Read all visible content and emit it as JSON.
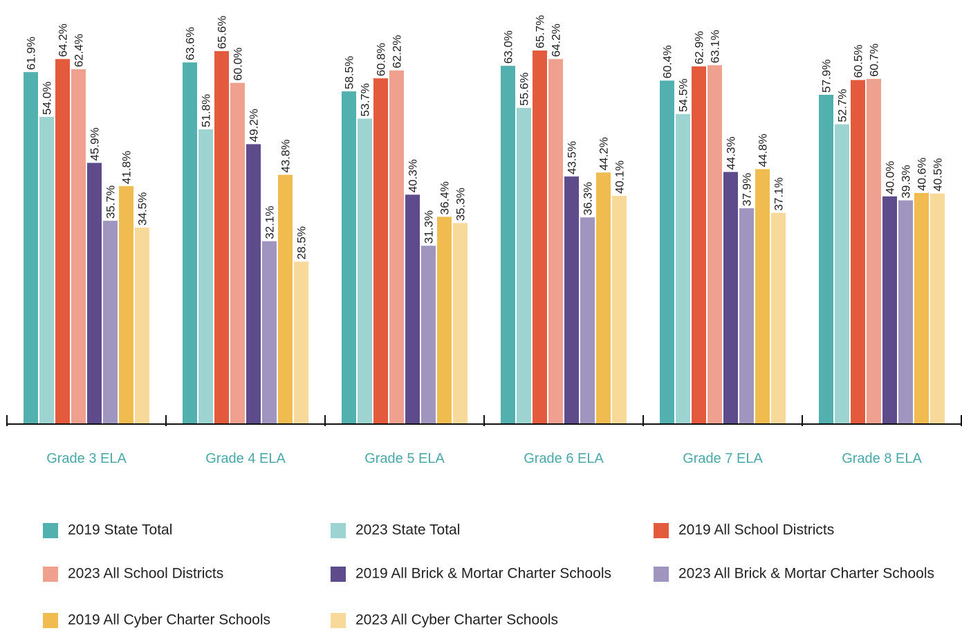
{
  "chart_data": {
    "type": "bar",
    "categories": [
      "Grade 3 ELA",
      "Grade 4 ELA",
      "Grade 5 ELA",
      "Grade 6 ELA",
      "Grade 7 ELA",
      "Grade 8 ELA"
    ],
    "ylim": [
      0,
      74.6
    ],
    "series": [
      {
        "name": "2019 State Total",
        "color": "#52b0ae",
        "values": [
          61.9,
          63.6,
          58.5,
          63.0,
          60.4,
          57.9
        ],
        "value_labels": [
          "61.9%",
          "63.6%",
          "58.5%",
          "63.0%",
          "60.4%",
          "57.9%"
        ]
      },
      {
        "name": "2023 State Total",
        "color": "#9dd3d1",
        "values": [
          54.0,
          51.8,
          53.7,
          55.6,
          54.5,
          52.7
        ],
        "value_labels": [
          "54.0%",
          "51.8%",
          "53.7%",
          "55.6%",
          "54.5%",
          "52.7%"
        ]
      },
      {
        "name": "2019 All School Districts",
        "color": "#e35a3c",
        "values": [
          64.2,
          65.6,
          60.8,
          65.7,
          62.9,
          60.5
        ],
        "value_labels": [
          "64.2%",
          "65.6%",
          "60.8%",
          "65.7%",
          "62.9%",
          "60.5%"
        ]
      },
      {
        "name": "2023 All School Districts",
        "color": "#f0a08e",
        "values": [
          62.4,
          60.0,
          62.2,
          64.2,
          63.1,
          60.7
        ],
        "value_labels": [
          "62.4%",
          "60.0%",
          "62.2%",
          "64.2%",
          "63.1%",
          "60.7%"
        ]
      },
      {
        "name": "2019 All Brick & Mortar Charter Schools",
        "color": "#5e4b8b",
        "values": [
          45.9,
          49.2,
          40.3,
          43.5,
          44.3,
          40.0
        ],
        "value_labels": [
          "45.9%",
          "49.2%",
          "40.3%",
          "43.5%",
          "44.3%",
          "40.0%"
        ]
      },
      {
        "name": "2023 All Brick & Mortar Charter Schools",
        "color": "#9f95bf",
        "values": [
          35.7,
          32.1,
          31.3,
          36.3,
          37.9,
          39.3
        ],
        "value_labels": [
          "35.7%",
          "32.1%",
          "31.3%",
          "36.3%",
          "37.9%",
          "39.3%"
        ]
      },
      {
        "name": "2019 All Cyber Charter Schools",
        "color": "#f0bc50",
        "values": [
          41.8,
          43.8,
          36.4,
          44.2,
          44.8,
          40.6
        ],
        "value_labels": [
          "41.8%",
          "43.8%",
          "36.4%",
          "44.2%",
          "44.8%",
          "40.6%"
        ]
      },
      {
        "name": "2023 All Cyber Charter Schools",
        "color": "#f7d99a",
        "values": [
          34.5,
          28.5,
          35.3,
          40.1,
          37.1,
          40.5
        ],
        "value_labels": [
          "34.5%",
          "28.5%",
          "35.3%",
          "40.1%",
          "37.1%",
          "40.5%"
        ]
      }
    ]
  }
}
